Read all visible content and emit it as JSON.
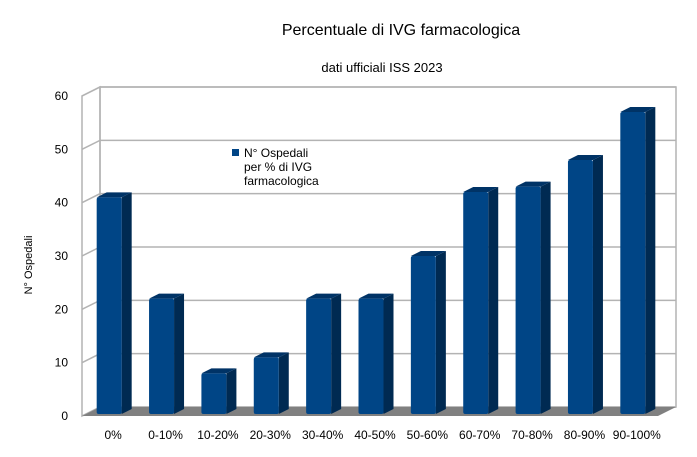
{
  "chart_data": {
    "type": "bar",
    "title": "Percentuale di IVG farmacologica",
    "subtitle": "dati ufficiali ISS 2023",
    "xlabel": "",
    "ylabel": "N° Ospedali",
    "categories": [
      "0%",
      "0-10%",
      "10-20%",
      "20-30%",
      "30-40%",
      "40-50%",
      "50-60%",
      "60-70%",
      "70-80%",
      "80-90%",
      "90-100%"
    ],
    "series": [
      {
        "name": "N° Ospedali per % di IVG farmacologica",
        "name_lines": [
          "N° Ospedali",
          "per % di IVG",
          "farmacologica"
        ],
        "values": [
          41,
          22,
          8,
          11,
          22,
          22,
          30,
          42,
          43,
          48,
          57
        ]
      }
    ],
    "ylim": [
      0,
      60
    ],
    "yticks": [
      0,
      10,
      20,
      30,
      40,
      50,
      60
    ],
    "grid": true,
    "legend": "inside-top-left",
    "style": "3d",
    "colors": {
      "bar_front": "#004586",
      "bar_side": "#002a52",
      "floor": "#808080",
      "grid": "#b3b3b3"
    }
  }
}
